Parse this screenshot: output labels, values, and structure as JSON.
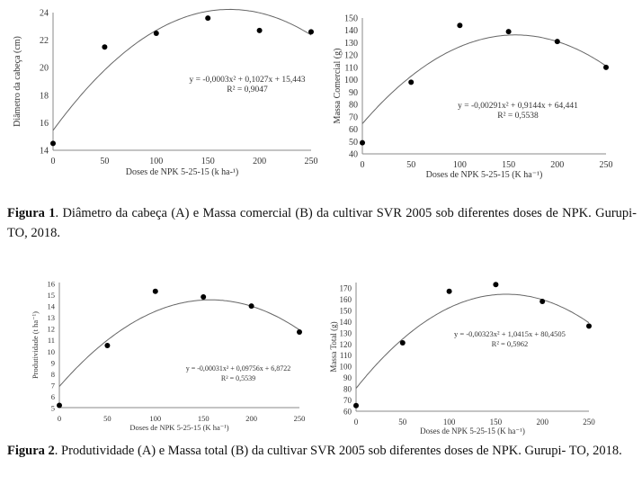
{
  "chart_data": [
    {
      "type": "scatter",
      "panel": "A",
      "x": [
        0,
        50,
        100,
        150,
        200,
        250
      ],
      "y": [
        14.5,
        21.5,
        22.5,
        23.6,
        22.7,
        22.6
      ],
      "fit": {
        "a": -0.0003,
        "b": 0.1027,
        "c": 15.443
      },
      "equation": "y = -0,0003x² + 0,1027x + 15,443",
      "r2": "R² = 0,9047",
      "xlabel": "Doses de NPK 5-25-15 (k ha-¹)",
      "ylabel": "Diâmetro da cabeça (cm)",
      "xticks": [
        0,
        50,
        100,
        150,
        200,
        250
      ],
      "yticks": [
        14,
        16,
        18,
        20,
        22,
        24
      ],
      "xlim": [
        0,
        250
      ],
      "ylim": [
        14,
        25
      ],
      "grid": false
    },
    {
      "type": "scatter",
      "panel": "B",
      "x": [
        0,
        50,
        100,
        150,
        200,
        250
      ],
      "y": [
        49,
        98,
        144,
        139,
        131,
        110
      ],
      "fit": {
        "a": -0.00291,
        "b": 0.9144,
        "c": 64.441
      },
      "equation": "y = -0,00291x² + 0,9144x + 64,441",
      "r2": "R² = 0,5538",
      "xlabel": "Doses de NPK 5-25-15 (K ha⁻¹)",
      "ylabel": "Massa Comercial (g)",
      "xticks": [
        0,
        50,
        100,
        150,
        200,
        250
      ],
      "yticks": [
        40,
        50,
        60,
        70,
        80,
        90,
        100,
        110,
        120,
        130,
        140,
        150
      ],
      "xlim": [
        0,
        250
      ],
      "ylim": [
        40,
        150
      ],
      "grid": false
    },
    {
      "type": "scatter",
      "panel": "C",
      "x": [
        0,
        50,
        100,
        150,
        200,
        250
      ],
      "y": [
        5.2,
        10.5,
        15.3,
        14.8,
        14.0,
        11.7
      ],
      "fit": {
        "a": -0.00031,
        "b": 0.09756,
        "c": 6.8722
      },
      "equation": "y = -0,00031x² + 0,09756x + 6,8722",
      "r2": "R² = 0,5539",
      "xlabel": "Doses de NPK 5-25-15 (K ha⁻¹)",
      "ylabel": "Produtividade (t ha⁻¹)",
      "xticks": [
        0,
        50,
        100,
        150,
        200,
        250
      ],
      "yticks": [
        5,
        6,
        7,
        8,
        9,
        10,
        11,
        12,
        13,
        14,
        15,
        16
      ],
      "xlim": [
        0,
        250
      ],
      "ylim": [
        5,
        16
      ],
      "grid": false
    },
    {
      "type": "scatter",
      "panel": "D",
      "x": [
        0,
        50,
        100,
        150,
        200,
        250
      ],
      "y": [
        65,
        121,
        167,
        173,
        158,
        136
      ],
      "fit": {
        "a": -0.00323,
        "b": 1.0415,
        "c": 80.4505
      },
      "equation": "y = -0,00323x² + 1,0415x + 80,4505",
      "r2": "R² = 0,5962",
      "xlabel": "Doses de NPK 5-25-15 (K ha⁻¹)",
      "ylabel": "Massa Total (g)",
      "xticks": [
        0,
        50,
        100,
        150,
        200,
        250
      ],
      "yticks": [
        60,
        70,
        80,
        90,
        100,
        110,
        120,
        130,
        140,
        150,
        160,
        170
      ],
      "xlim": [
        0,
        250
      ],
      "ylim": [
        60,
        175
      ],
      "grid": false
    }
  ],
  "captions": [
    {
      "label": "Figura 1",
      "text": ". Diâmetro da cabeça (A) e Massa comercial (B) da cultivar SVR 2005 sob diferentes doses de NPK. Gurupi- TO, 2018."
    },
    {
      "label": "Figura 2",
      "text": ". Produtividade (A) e Massa total (B) da cultivar SVR 2005 sob diferentes doses de NPK. Gurupi- TO, 2018."
    }
  ]
}
